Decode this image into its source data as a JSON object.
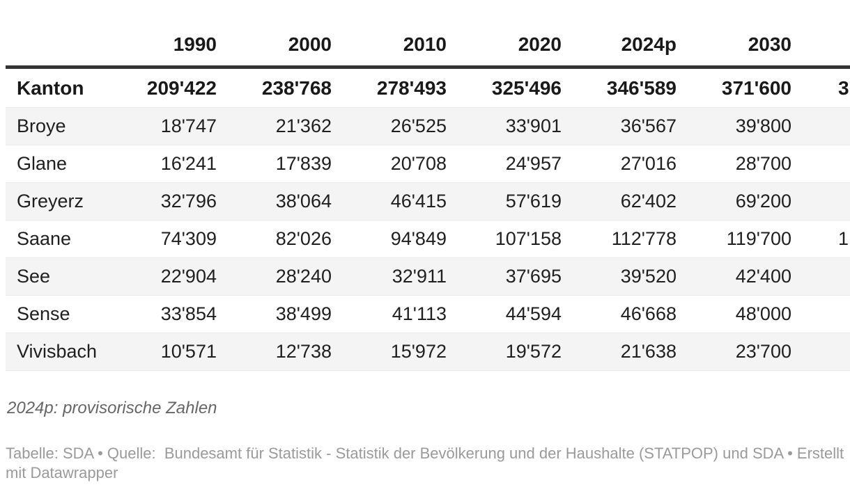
{
  "chart_data": {
    "type": "table",
    "columns": [
      "",
      "1990",
      "2000",
      "2010",
      "2020",
      "2024p",
      "2030"
    ],
    "rows": [
      {
        "label": "Kanton",
        "values": [
          209422,
          238768,
          278493,
          325496,
          346589,
          371600
        ],
        "bold": true,
        "truncated_next_column_fragment": "3"
      },
      {
        "label": "Broye",
        "values": [
          18747,
          21362,
          26525,
          33901,
          36567,
          39800
        ]
      },
      {
        "label": "Glane",
        "values": [
          16241,
          17839,
          20708,
          24957,
          27016,
          28700
        ]
      },
      {
        "label": "Greyerz",
        "values": [
          32796,
          38064,
          46415,
          57619,
          62402,
          69200
        ]
      },
      {
        "label": "Saane",
        "values": [
          74309,
          82026,
          94849,
          107158,
          112778,
          119700
        ],
        "truncated_next_column_fragment": "1"
      },
      {
        "label": "See",
        "values": [
          22904,
          28240,
          32911,
          37695,
          39520,
          42400
        ]
      },
      {
        "label": "Sense",
        "values": [
          33854,
          38499,
          41113,
          44594,
          46668,
          48000
        ]
      },
      {
        "label": "Vivisbach",
        "values": [
          10571,
          12738,
          15972,
          19572,
          21638,
          23700
        ]
      }
    ],
    "number_format": "thousands separated by apostrophe",
    "layout_hints": {
      "value_alignment": "right",
      "zebra_striping": true,
      "header_rule": "thick dark line below year header",
      "rightmost_column_clipped": true
    }
  },
  "table": {
    "columns": [
      "",
      "1990",
      "2000",
      "2010",
      "2020",
      "2024p",
      "2030"
    ],
    "rows": [
      {
        "label": "Kanton",
        "bold": true,
        "values": [
          "209'422",
          "238'768",
          "278'493",
          "325'496",
          "346'589",
          "371'600"
        ],
        "fragment": "3"
      },
      {
        "label": "Broye",
        "values": [
          "18'747",
          "21'362",
          "26'525",
          "33'901",
          "36'567",
          "39'800"
        ],
        "fragment": ""
      },
      {
        "label": "Glane",
        "values": [
          "16'241",
          "17'839",
          "20'708",
          "24'957",
          "27'016",
          "28'700"
        ],
        "fragment": ""
      },
      {
        "label": "Greyerz",
        "values": [
          "32'796",
          "38'064",
          "46'415",
          "57'619",
          "62'402",
          "69'200"
        ],
        "fragment": ""
      },
      {
        "label": "Saane",
        "values": [
          "74'309",
          "82'026",
          "94'849",
          "107'158",
          "112'778",
          "119'700"
        ],
        "fragment": "1"
      },
      {
        "label": "See",
        "values": [
          "22'904",
          "28'240",
          "32'911",
          "37'695",
          "39'520",
          "42'400"
        ],
        "fragment": ""
      },
      {
        "label": "Sense",
        "values": [
          "33'854",
          "38'499",
          "41'113",
          "44'594",
          "46'668",
          "48'000"
        ],
        "fragment": ""
      },
      {
        "label": "Vivisbach",
        "values": [
          "10'571",
          "12'738",
          "15'972",
          "19'572",
          "21'638",
          "23'700"
        ],
        "fragment": ""
      }
    ]
  },
  "footer": {
    "footnote": "2024p: provisorische Zahlen",
    "attribution_lines": [
      "Tabelle: SDA • Quelle:  Bundesamt für Statistik - Statistik der Bevölkerung und der Haushalte (STATPOP) und SDA • Erstellt",
      "mit Datawrapper"
    ]
  },
  "colors": {
    "header_rule": "#333333",
    "zebra_row": "#f4f4f4",
    "row_divider": "#ececec",
    "body_text": "#1f1f1f",
    "footnote_text": "#666666",
    "attribution_text": "#9a9a9a",
    "background": "#ffffff"
  }
}
